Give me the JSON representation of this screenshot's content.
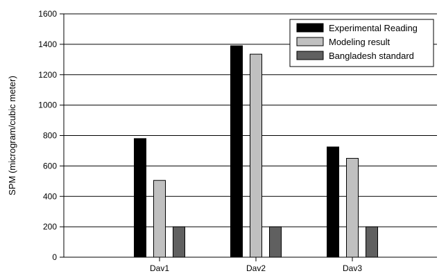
{
  "chart_data": {
    "type": "bar",
    "title": "",
    "xlabel": "",
    "ylabel": "SPM (microgram/cubic meter)",
    "categories": [
      "Dav1",
      "Dav2",
      "Dav3"
    ],
    "ylim": [
      0,
      1600
    ],
    "yticks": [
      "0",
      "200",
      "400",
      "600",
      "800",
      "1000",
      "1200",
      "1400",
      "1600"
    ],
    "grid": "horizontal",
    "legend_position": "top-right",
    "series": [
      {
        "name": "Experimental Reading",
        "values": [
          780,
          1390,
          725
        ],
        "color": "#000000"
      },
      {
        "name": "Modeling result",
        "values": [
          505,
          1335,
          650
        ],
        "color": "#c0c0c0"
      },
      {
        "name": "Bangladesh standard",
        "values": [
          200,
          200,
          200
        ],
        "color": "#606060"
      }
    ]
  }
}
